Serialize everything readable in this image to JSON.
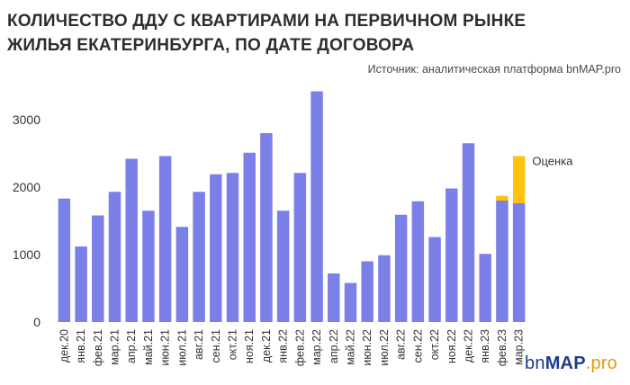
{
  "title": "КОЛИЧЕСТВО ДДУ С КВАРТИРАМИ НА ПЕРВИЧНОМ РЫНКЕ ЖИЛЬЯ ЕКАТЕРИНБУРГА, ПО ДАТЕ ДОГОВОРА",
  "source": "Источник: аналитическая платформа bnMAP.pro",
  "logo": {
    "prefix": "bn",
    "brand": "MAP",
    "suffix": ".pro"
  },
  "colors": {
    "actual": "#7b7fe8",
    "estimate": "#ffc20e",
    "logo_blue": "#1f3b8a",
    "logo_orange": "#e69b00"
  },
  "chart_data": {
    "type": "bar",
    "stacked": true,
    "categories": [
      "дек.20",
      "янв.21",
      "фев.21",
      "мар.21",
      "апр.21",
      "май.21",
      "июн.21",
      "июл.21",
      "авг.21",
      "сен.21",
      "окт.21",
      "ноя.21",
      "дек.21",
      "янв.22",
      "фев.22",
      "мар.22",
      "апр.22",
      "май.22",
      "июн.22",
      "июл.22",
      "авг.22",
      "сен.22",
      "окт.22",
      "ноя.22",
      "дек.22",
      "янв.23",
      "фев.23",
      "мар.23"
    ],
    "series": [
      {
        "values": [
          1830,
          1120,
          1580,
          1930,
          2420,
          1650,
          2460,
          1410,
          1930,
          2190,
          2210,
          2510,
          2800,
          1650,
          2210,
          3420,
          720,
          580,
          900,
          990,
          1590,
          1790,
          1260,
          1980,
          2650,
          1010,
          1800,
          1760
        ]
      },
      {
        "name": "Оценка",
        "values": [
          0,
          0,
          0,
          0,
          0,
          0,
          0,
          0,
          0,
          0,
          0,
          0,
          0,
          0,
          0,
          0,
          0,
          0,
          0,
          0,
          0,
          0,
          0,
          0,
          0,
          0,
          70,
          700
        ]
      }
    ],
    "yticks": [
      0,
      1000,
      2000,
      3000
    ],
    "ylim": [
      0,
      3500
    ],
    "grid": false,
    "legend_label": "Оценка"
  }
}
